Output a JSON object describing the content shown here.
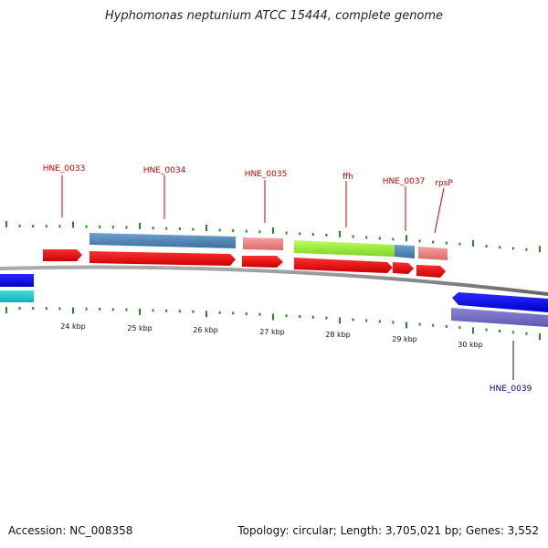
{
  "title": "Hyphomonas neptunium ATCC 15444, complete genome",
  "accession": "Accession: NC_008358",
  "summary": "Topology: circular; Length: 3,705,021 bp; Genes: 3,552",
  "colors": {
    "label_red": "#cc0000",
    "label_blue": "#00008b",
    "tick_green": "#228b22",
    "backbone": "#888888"
  },
  "kbp_labels": [
    "24 kbp",
    "25 kbp",
    "26 kbp",
    "27 kbp",
    "28 kbp",
    "29 kbp",
    "30 kbp"
  ],
  "gene_labels": [
    {
      "text": "HNE_0033",
      "color": "#cc0000"
    },
    {
      "text": "HNE_0034",
      "color": "#cc0000"
    },
    {
      "text": "HNE_0035",
      "color": "#cc0000"
    },
    {
      "text": "ffh",
      "color": "#cc0000"
    },
    {
      "text": "HNE_0037",
      "color": "#cc0000"
    },
    {
      "text": "rpsP",
      "color": "#cc0000"
    },
    {
      "text": "HNE_0039",
      "color": "#00008b"
    }
  ]
}
